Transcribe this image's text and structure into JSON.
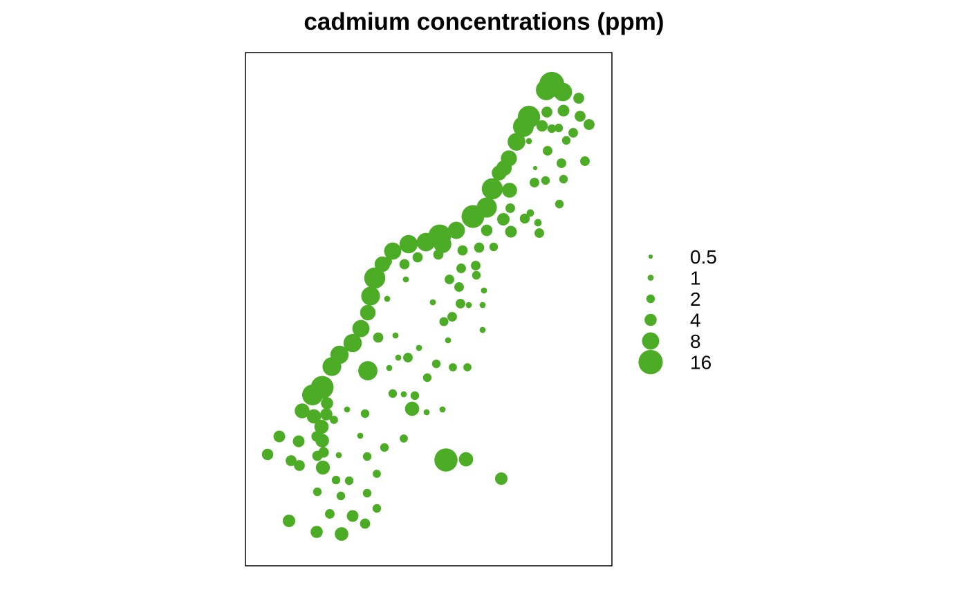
{
  "chart_data": {
    "type": "scatter",
    "title": "cadmium concentrations (ppm)",
    "xlabel": "",
    "ylabel": "",
    "grid": false,
    "legend_position": "right",
    "marker_color": "#4dac26",
    "frame_color": "#000000",
    "legend": {
      "title": "",
      "entries": [
        {
          "label": "0.5",
          "value": 0.5
        },
        {
          "label": "1",
          "value": 1
        },
        {
          "label": "2",
          "value": 2
        },
        {
          "label": "4",
          "value": 4
        },
        {
          "label": "8",
          "value": 8
        },
        {
          "label": "16",
          "value": 16
        }
      ]
    },
    "series": [
      {
        "name": "",
        "points": [
          [
            798,
            122,
            17
          ],
          [
            790,
            130,
            11.5
          ],
          [
            814,
            133,
            9.3
          ],
          [
            837,
            142,
            3.2
          ],
          [
            765,
            169,
            13.5
          ],
          [
            791,
            162,
            3.2
          ],
          [
            815,
            160,
            3.7
          ],
          [
            839,
            168,
            3.2
          ],
          [
            757,
            183,
            11.7
          ],
          [
            784,
            182,
            3.5
          ],
          [
            798,
            186,
            2
          ],
          [
            808,
            185,
            2
          ],
          [
            829,
            192,
            2.5
          ],
          [
            852,
            180,
            3.2
          ],
          [
            747,
            205,
            8.5
          ],
          [
            765,
            204,
            1
          ],
          [
            792,
            218,
            2.5
          ],
          [
            819,
            203,
            2
          ],
          [
            736,
            229,
            7
          ],
          [
            729,
            243,
            6.5
          ],
          [
            722,
            250,
            6
          ],
          [
            774,
            243,
            0.5
          ],
          [
            812,
            236,
            2.5
          ],
          [
            846,
            233,
            2.5
          ],
          [
            712,
            273,
            12
          ],
          [
            737,
            275,
            6
          ],
          [
            773,
            264,
            2.5
          ],
          [
            789,
            261,
            2
          ],
          [
            815,
            259,
            2
          ],
          [
            704,
            300,
            11
          ],
          [
            738,
            301,
            2.5
          ],
          [
            809,
            295,
            2
          ],
          [
            767,
            308,
            1.5
          ],
          [
            684,
            313,
            14
          ],
          [
            704,
            333,
            3.5
          ],
          [
            728,
            317,
            4.2
          ],
          [
            759,
            316,
            2.7
          ],
          [
            778,
            322,
            1.5
          ],
          [
            780,
            337,
            2.5
          ],
          [
            739,
            335,
            3.7
          ],
          [
            660,
            333,
            8
          ],
          [
            636,
            341,
            14
          ],
          [
            616,
            350,
            9.2
          ],
          [
            591,
            353,
            9
          ],
          [
            568,
            363,
            8
          ],
          [
            560,
            378,
            2.5
          ],
          [
            640,
            353,
            8.5
          ],
          [
            634,
            368,
            2.8
          ],
          [
            669,
            362,
            2.8
          ],
          [
            693,
            358,
            2.8
          ],
          [
            714,
            357,
            2
          ],
          [
            553,
            382,
            6.5
          ],
          [
            542,
            402,
            12
          ],
          [
            536,
            428,
            9.5
          ],
          [
            532,
            452,
            6.5
          ],
          [
            604,
            372,
            2.8
          ],
          [
            585,
            382,
            2.8
          ],
          [
            587,
            404,
            1
          ],
          [
            667,
            388,
            2.5
          ],
          [
            688,
            384,
            2.5
          ],
          [
            650,
            404,
            2.5
          ],
          [
            664,
            415,
            2.5
          ],
          [
            689,
            398,
            2
          ],
          [
            700,
            420,
            1
          ],
          [
            522,
            475,
            8
          ],
          [
            510,
            496,
            9
          ],
          [
            491,
            513,
            9
          ],
          [
            480,
            530,
            9.5
          ],
          [
            532,
            536,
            10
          ],
          [
            547,
            488,
            2.8
          ],
          [
            560,
            432,
            1
          ],
          [
            626,
            437,
            1
          ],
          [
            666,
            439,
            2.5
          ],
          [
            678,
            441,
            1
          ],
          [
            698,
            441,
            1
          ],
          [
            642,
            465,
            2.2
          ],
          [
            654,
            458,
            2.5
          ],
          [
            698,
            477,
            1
          ],
          [
            466,
            560,
            14
          ],
          [
            452,
            571,
            11.7
          ],
          [
            473,
            583,
            4
          ],
          [
            437,
            594,
            6
          ],
          [
            454,
            602,
            5.5
          ],
          [
            472,
            599,
            4
          ],
          [
            483,
            607,
            1.8
          ],
          [
            528,
            598,
            2
          ],
          [
            502,
            592,
            1
          ],
          [
            572,
            485,
            1
          ],
          [
            606,
            503,
            1
          ],
          [
            590,
            517,
            2.5
          ],
          [
            576,
            517,
            1
          ],
          [
            563,
            532,
            1
          ],
          [
            631,
            526,
            2
          ],
          [
            655,
            531,
            1.8
          ],
          [
            676,
            531,
            1.8
          ],
          [
            648,
            492,
            1
          ],
          [
            618,
            546,
            2
          ],
          [
            568,
            569,
            2
          ],
          [
            584,
            570,
            1
          ],
          [
            600,
            572,
            2
          ],
          [
            596,
            591,
            5.5
          ],
          [
            617,
            596,
            1
          ],
          [
            640,
            592,
            1
          ],
          [
            465,
            617,
            5.5
          ],
          [
            458,
            631,
            3
          ],
          [
            466,
            637,
            5
          ],
          [
            468,
            654,
            3
          ],
          [
            432,
            638,
            3.7
          ],
          [
            404,
            631,
            3.7
          ],
          [
            387,
            657,
            3.5
          ],
          [
            421,
            666,
            3.2
          ],
          [
            433,
            673,
            3.2
          ],
          [
            459,
            659,
            2.8
          ],
          [
            467,
            676,
            5.3
          ],
          [
            490,
            658,
            1
          ],
          [
            531,
            660,
            2
          ],
          [
            556,
            647,
            2
          ],
          [
            521,
            630,
            1
          ],
          [
            584,
            634,
            1.8
          ],
          [
            645,
            665,
            14.5
          ],
          [
            674,
            664,
            5.5
          ],
          [
            725,
            692,
            4.2
          ],
          [
            486,
            694,
            2
          ],
          [
            505,
            695,
            2
          ],
          [
            545,
            685,
            1.8
          ],
          [
            459,
            711,
            2
          ],
          [
            493,
            717,
            2
          ],
          [
            531,
            713,
            2
          ],
          [
            545,
            735,
            2
          ],
          [
            477,
            743,
            2.5
          ],
          [
            510,
            746,
            3.7
          ],
          [
            528,
            757,
            2.8
          ],
          [
            418,
            753,
            4.2
          ],
          [
            458,
            769,
            4
          ],
          [
            494,
            772,
            5
          ]
        ]
      }
    ]
  }
}
